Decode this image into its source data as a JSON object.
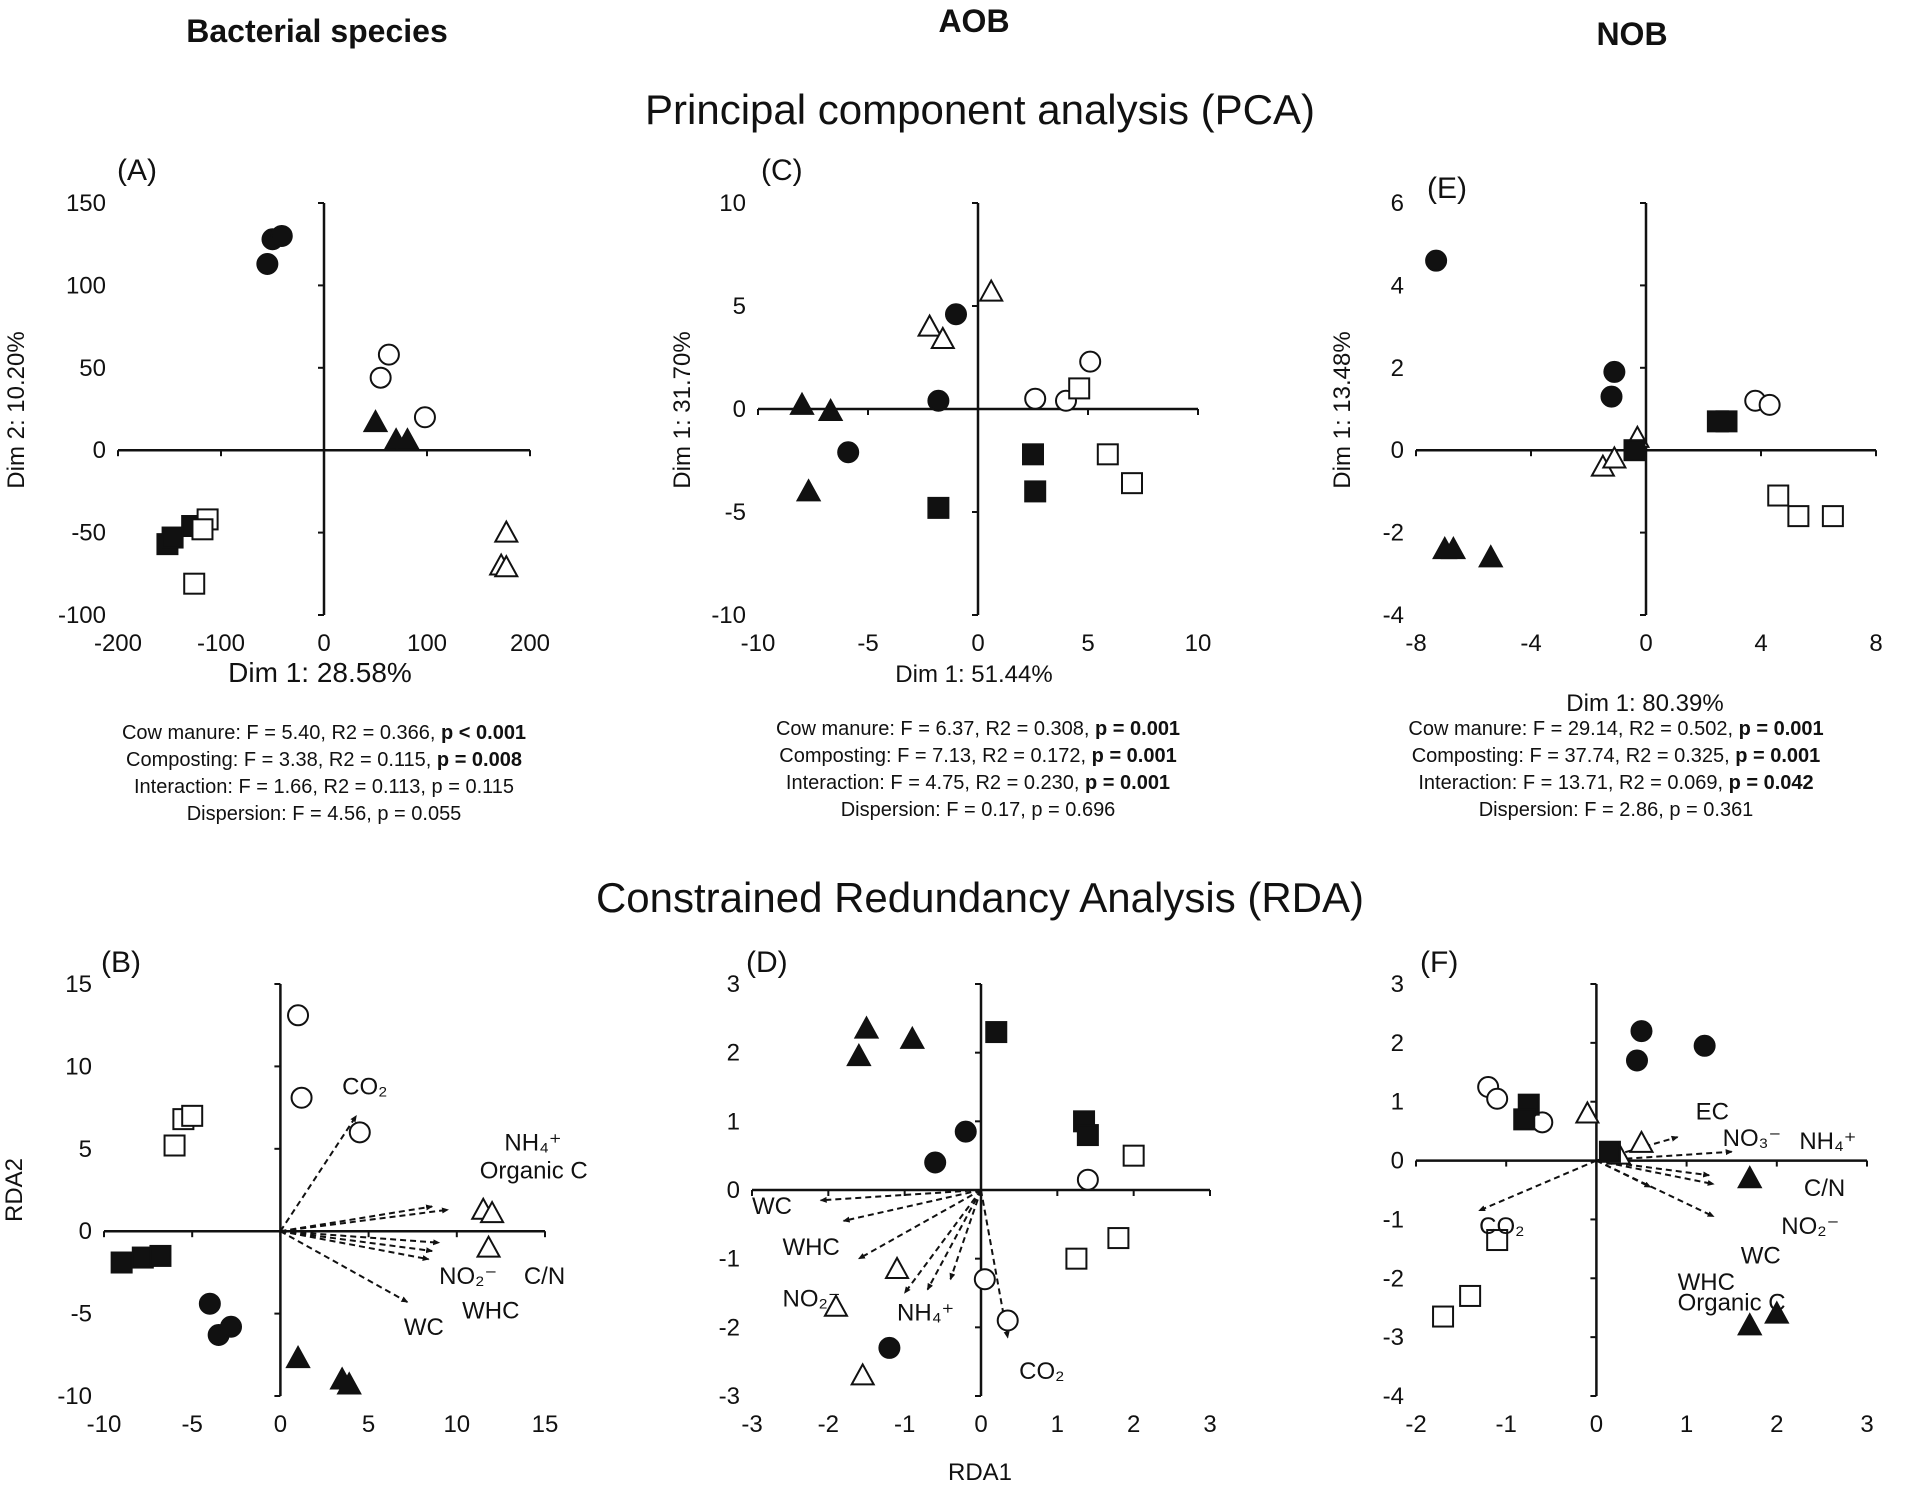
{
  "figure": {
    "column_headers": [
      "Bacterial species",
      "AOB",
      "NOB"
    ],
    "row_titles": [
      "Principal component analysis (PCA)",
      "Constrained Redundancy Analysis (RDA)"
    ],
    "shared_xlabel_rda": "RDA1"
  },
  "chart_data": [
    {
      "id": "A",
      "type": "scatter",
      "label": "(A)",
      "xlabel": "Dim 1: 28.58%",
      "ylabel": "Dim 2: 10.20%",
      "xlim": [
        -200,
        200
      ],
      "ylim": [
        -100,
        150
      ],
      "xticks": [
        -200,
        -100,
        0,
        100,
        200
      ],
      "yticks": [
        -100,
        -50,
        0,
        50,
        100,
        150
      ],
      "points": [
        {
          "x": -55,
          "y": 113,
          "m": "circle-filled"
        },
        {
          "x": -50,
          "y": 128,
          "m": "circle-filled"
        },
        {
          "x": -41,
          "y": 130,
          "m": "circle-filled"
        },
        {
          "x": 55,
          "y": 44,
          "m": "circle-open"
        },
        {
          "x": 63,
          "y": 58,
          "m": "circle-open"
        },
        {
          "x": 98,
          "y": 20,
          "m": "circle-open"
        },
        {
          "x": 50,
          "y": 17,
          "m": "triangle-filled"
        },
        {
          "x": 70,
          "y": 6,
          "m": "triangle-filled"
        },
        {
          "x": 81,
          "y": 6,
          "m": "triangle-filled"
        },
        {
          "x": 177,
          "y": -50,
          "m": "triangle-open"
        },
        {
          "x": 172,
          "y": -70,
          "m": "triangle-open"
        },
        {
          "x": 177,
          "y": -71,
          "m": "triangle-open"
        },
        {
          "x": -152,
          "y": -57,
          "m": "square-filled"
        },
        {
          "x": -147,
          "y": -53,
          "m": "square-filled"
        },
        {
          "x": -128,
          "y": -46,
          "m": "square-filled"
        },
        {
          "x": -113,
          "y": -42,
          "m": "square-open"
        },
        {
          "x": -118,
          "y": -48,
          "m": "square-open"
        },
        {
          "x": -126,
          "y": -81,
          "m": "square-open"
        }
      ],
      "stats": [
        {
          "pre": "Cow manure: F = 5.40, R2 = 0.366, ",
          "p": "p < 0.001",
          "bold": true
        },
        {
          "pre": "Composting: F = 3.38, R2 = 0.115, ",
          "p": "p = 0.008",
          "bold": true
        },
        {
          "pre": "Interaction: F = 1.66, R2 = 0.113, ",
          "p": "p = 0.115",
          "bold": false
        },
        {
          "pre": "Dispersion: F = 4.56, ",
          "p": "p = 0.055",
          "bold": false
        }
      ]
    },
    {
      "id": "C",
      "type": "scatter",
      "label": "(C)",
      "xlabel": "Dim 1: 51.44%",
      "ylabel": "Dim 1: 31.70%",
      "xlim": [
        -10,
        10
      ],
      "ylim": [
        -10,
        10
      ],
      "xticks": [
        -10,
        -5,
        0,
        5,
        10
      ],
      "yticks": [
        -10,
        -5,
        0,
        5,
        10
      ],
      "points": [
        {
          "x": -1.0,
          "y": 4.6,
          "m": "circle-filled"
        },
        {
          "x": -1.8,
          "y": 0.4,
          "m": "circle-filled"
        },
        {
          "x": -5.9,
          "y": -2.1,
          "m": "circle-filled"
        },
        {
          "x": 2.6,
          "y": 0.5,
          "m": "circle-open"
        },
        {
          "x": 4.0,
          "y": 0.4,
          "m": "circle-open"
        },
        {
          "x": 5.1,
          "y": 2.3,
          "m": "circle-open"
        },
        {
          "x": -8.0,
          "y": 0.2,
          "m": "triangle-filled"
        },
        {
          "x": -6.7,
          "y": -0.1,
          "m": "triangle-filled"
        },
        {
          "x": -7.7,
          "y": -4.0,
          "m": "triangle-filled"
        },
        {
          "x": 0.6,
          "y": 5.7,
          "m": "triangle-open"
        },
        {
          "x": -2.2,
          "y": 4.0,
          "m": "triangle-open"
        },
        {
          "x": -1.6,
          "y": 3.4,
          "m": "triangle-open"
        },
        {
          "x": 2.5,
          "y": -2.2,
          "m": "square-filled"
        },
        {
          "x": 2.6,
          "y": -4.0,
          "m": "square-filled"
        },
        {
          "x": -1.8,
          "y": -4.8,
          "m": "square-filled"
        },
        {
          "x": 4.6,
          "y": 1.0,
          "m": "square-open"
        },
        {
          "x": 5.9,
          "y": -2.2,
          "m": "square-open"
        },
        {
          "x": 7.0,
          "y": -3.6,
          "m": "square-open"
        }
      ],
      "stats": [
        {
          "pre": "Cow manure: F = 6.37, R2 = 0.308, ",
          "p": "p = 0.001",
          "bold": true
        },
        {
          "pre": "Composting: F = 7.13, R2 = 0.172, ",
          "p": "p = 0.001",
          "bold": true
        },
        {
          "pre": "Interaction: F = 4.75, R2 = 0.230, ",
          "p": "p = 0.001",
          "bold": true
        },
        {
          "pre": "Dispersion: F = 0.17, ",
          "p": "p = 0.696",
          "bold": false
        }
      ]
    },
    {
      "id": "E",
      "type": "scatter",
      "label": "(E)",
      "xlabel": "Dim 1: 80.39%",
      "ylabel": "Dim 1: 13.48%",
      "xlim": [
        -8,
        8
      ],
      "ylim": [
        -4,
        6
      ],
      "xticks": [
        -8,
        -4,
        0,
        4,
        8
      ],
      "yticks": [
        -4,
        -2,
        0,
        2,
        4,
        6
      ],
      "points": [
        {
          "x": -7.3,
          "y": 4.6,
          "m": "circle-filled"
        },
        {
          "x": -1.1,
          "y": 1.9,
          "m": "circle-filled"
        },
        {
          "x": -1.2,
          "y": 1.3,
          "m": "circle-filled"
        },
        {
          "x": 3.8,
          "y": 1.2,
          "m": "circle-open"
        },
        {
          "x": 4.3,
          "y": 1.1,
          "m": "circle-open"
        },
        {
          "x": -7.0,
          "y": -2.4,
          "m": "triangle-filled"
        },
        {
          "x": -6.7,
          "y": -2.4,
          "m": "triangle-filled"
        },
        {
          "x": -5.4,
          "y": -2.6,
          "m": "triangle-filled"
        },
        {
          "x": -1.5,
          "y": -0.4,
          "m": "triangle-open"
        },
        {
          "x": -1.1,
          "y": -0.2,
          "m": "triangle-open"
        },
        {
          "x": -0.3,
          "y": 0.3,
          "m": "triangle-open"
        },
        {
          "x": -0.4,
          "y": 0.0,
          "m": "square-filled"
        },
        {
          "x": 2.5,
          "y": 0.7,
          "m": "square-filled"
        },
        {
          "x": 2.8,
          "y": 0.7,
          "m": "square-filled"
        },
        {
          "x": 4.6,
          "y": -1.1,
          "m": "square-open"
        },
        {
          "x": 5.3,
          "y": -1.6,
          "m": "square-open"
        },
        {
          "x": 6.5,
          "y": -1.6,
          "m": "square-open"
        }
      ],
      "stats": [
        {
          "pre": "Cow manure: F = 29.14, R2 = 0.502, ",
          "p": "p = 0.001",
          "bold": true
        },
        {
          "pre": "Composting: F = 37.74, R2 = 0.325, ",
          "p": "p = 0.001",
          "bold": true
        },
        {
          "pre": "Interaction: F = 13.71, R2 = 0.069, ",
          "p": "p = 0.042",
          "bold": true
        },
        {
          "pre": "Dispersion: F = 2.86, ",
          "p": "p = 0.361",
          "bold": false
        }
      ]
    },
    {
      "id": "B",
      "type": "scatter",
      "label": "(B)",
      "xlabel": "",
      "ylabel": "RDA2",
      "xlim": [
        -10,
        15
      ],
      "ylim": [
        -10,
        15
      ],
      "xticks": [
        -10,
        -5,
        0,
        5,
        10,
        15
      ],
      "yticks": [
        -10,
        -5,
        0,
        5,
        10,
        15
      ],
      "points": [
        {
          "x": -4.0,
          "y": -4.4,
          "m": "circle-filled"
        },
        {
          "x": -3.5,
          "y": -6.3,
          "m": "circle-filled"
        },
        {
          "x": -2.8,
          "y": -5.8,
          "m": "circle-filled"
        },
        {
          "x": 1.0,
          "y": 13.1,
          "m": "circle-open"
        },
        {
          "x": 1.2,
          "y": 8.1,
          "m": "circle-open"
        },
        {
          "x": 4.5,
          "y": 6.0,
          "m": "circle-open"
        },
        {
          "x": 1.0,
          "y": -7.7,
          "m": "triangle-filled"
        },
        {
          "x": 3.5,
          "y": -9.0,
          "m": "triangle-filled"
        },
        {
          "x": 3.9,
          "y": -9.3,
          "m": "triangle-filled"
        },
        {
          "x": 11.5,
          "y": 1.3,
          "m": "triangle-open"
        },
        {
          "x": 12.0,
          "y": 1.1,
          "m": "triangle-open"
        },
        {
          "x": 11.8,
          "y": -1.0,
          "m": "triangle-open"
        },
        {
          "x": -9.0,
          "y": -1.9,
          "m": "square-filled"
        },
        {
          "x": -7.8,
          "y": -1.6,
          "m": "square-filled"
        },
        {
          "x": -6.8,
          "y": -1.5,
          "m": "square-filled"
        },
        {
          "x": -6.0,
          "y": 5.2,
          "m": "square-open"
        },
        {
          "x": -5.5,
          "y": 6.8,
          "m": "square-open"
        },
        {
          "x": -5.0,
          "y": 7.0,
          "m": "square-open"
        }
      ],
      "vectors": [
        {
          "label": "CO₂",
          "x": 4.3,
          "y": 7.0
        },
        {
          "label": "",
          "x": 8.6,
          "y": 1.5
        },
        {
          "label": "",
          "x": 9.5,
          "y": 1.3
        },
        {
          "label": "",
          "x": 9.0,
          "y": -0.7
        },
        {
          "label": "",
          "x": 8.6,
          "y": -1.2
        },
        {
          "label": "",
          "x": 8.4,
          "y": -1.7
        },
        {
          "label": "",
          "x": 7.2,
          "y": -4.3
        }
      ],
      "annotations": [
        {
          "text": "CO₂",
          "x": 3.5,
          "y": 8.3
        },
        {
          "text": "NH₄⁺",
          "x": 12.7,
          "y": 4.9
        },
        {
          "text": "Organic C",
          "x": 11.3,
          "y": 3.2
        },
        {
          "text": "NO₂⁻",
          "x": 9.0,
          "y": -3.2
        },
        {
          "text": "C/N",
          "x": 13.8,
          "y": -3.2
        },
        {
          "text": "WHC",
          "x": 10.3,
          "y": -5.3
        },
        {
          "text": "WC",
          "x": 7.0,
          "y": -6.3
        }
      ]
    },
    {
      "id": "D",
      "type": "scatter",
      "label": "(D)",
      "xlabel": "RDA1",
      "ylabel": "",
      "xlim": [
        -3,
        3
      ],
      "ylim": [
        -3,
        3
      ],
      "xticks": [
        -3,
        -2,
        -1,
        0,
        1,
        2,
        3
      ],
      "yticks": [
        -3,
        -2,
        -1,
        0,
        1,
        2,
        3
      ],
      "points": [
        {
          "x": -0.2,
          "y": 0.85,
          "m": "circle-filled"
        },
        {
          "x": -0.6,
          "y": 0.4,
          "m": "circle-filled"
        },
        {
          "x": -1.2,
          "y": -2.3,
          "m": "circle-filled"
        },
        {
          "x": 1.4,
          "y": 0.15,
          "m": "circle-open"
        },
        {
          "x": 0.05,
          "y": -1.3,
          "m": "circle-open"
        },
        {
          "x": 0.35,
          "y": -1.9,
          "m": "circle-open"
        },
        {
          "x": -1.5,
          "y": 2.35,
          "m": "triangle-filled"
        },
        {
          "x": -1.6,
          "y": 1.95,
          "m": "triangle-filled"
        },
        {
          "x": -0.9,
          "y": 2.2,
          "m": "triangle-filled"
        },
        {
          "x": -1.1,
          "y": -1.15,
          "m": "triangle-open"
        },
        {
          "x": -1.9,
          "y": -1.7,
          "m": "triangle-open"
        },
        {
          "x": -1.55,
          "y": -2.7,
          "m": "triangle-open"
        },
        {
          "x": 0.2,
          "y": 2.3,
          "m": "square-filled"
        },
        {
          "x": 1.35,
          "y": 1.0,
          "m": "square-filled"
        },
        {
          "x": 1.4,
          "y": 0.8,
          "m": "square-filled"
        },
        {
          "x": 2.0,
          "y": 0.5,
          "m": "square-open"
        },
        {
          "x": 1.8,
          "y": -0.7,
          "m": "square-open"
        },
        {
          "x": 1.25,
          "y": -1.0,
          "m": "square-open"
        }
      ],
      "vectors": [
        {
          "label": "WC",
          "x": -2.1,
          "y": -0.15
        },
        {
          "label": "WHC",
          "x": -1.8,
          "y": -0.45
        },
        {
          "label": "NO₂⁻",
          "x": -1.6,
          "y": -1.0
        },
        {
          "label": "NH₄⁺",
          "x": -1.0,
          "y": -1.5
        },
        {
          "label": "",
          "x": -0.7,
          "y": -1.45
        },
        {
          "label": "",
          "x": -0.4,
          "y": -1.3
        },
        {
          "label": "CO₂",
          "x": 0.35,
          "y": -2.15
        }
      ],
      "annotations": [
        {
          "text": "WC",
          "x": -3.0,
          "y": -0.35
        },
        {
          "text": "WHC",
          "x": -2.6,
          "y": -0.95
        },
        {
          "text": "NO₂⁻",
          "x": -2.6,
          "y": -1.7
        },
        {
          "text": "NH₄⁺",
          "x": -1.1,
          "y": -1.9
        },
        {
          "text": "CO₂",
          "x": 0.5,
          "y": -2.75
        }
      ]
    },
    {
      "id": "F",
      "type": "scatter",
      "label": "(F)",
      "xlabel": "",
      "ylabel": "",
      "xlim": [
        -2,
        3
      ],
      "ylim": [
        -4,
        3
      ],
      "xticks": [
        -2,
        -1,
        0,
        1,
        2,
        3
      ],
      "yticks": [
        -4,
        -3,
        -2,
        -1,
        0,
        1,
        2,
        3
      ],
      "points": [
        {
          "x": 0.5,
          "y": 2.2,
          "m": "circle-filled"
        },
        {
          "x": 0.45,
          "y": 1.7,
          "m": "circle-filled"
        },
        {
          "x": 1.2,
          "y": 1.95,
          "m": "circle-filled"
        },
        {
          "x": -1.2,
          "y": 1.25,
          "m": "circle-open"
        },
        {
          "x": -1.1,
          "y": 1.05,
          "m": "circle-open"
        },
        {
          "x": -0.6,
          "y": 0.65,
          "m": "circle-open"
        },
        {
          "x": 1.7,
          "y": -0.3,
          "m": "triangle-filled"
        },
        {
          "x": 1.7,
          "y": -2.8,
          "m": "triangle-filled"
        },
        {
          "x": 2.0,
          "y": -2.6,
          "m": "triangle-filled"
        },
        {
          "x": -0.1,
          "y": 0.8,
          "m": "triangle-open"
        },
        {
          "x": 0.5,
          "y": 0.3,
          "m": "triangle-open"
        },
        {
          "x": 0.25,
          "y": 0.1,
          "m": "triangle-open"
        },
        {
          "x": -0.75,
          "y": 0.95,
          "m": "square-filled"
        },
        {
          "x": -0.8,
          "y": 0.7,
          "m": "square-filled"
        },
        {
          "x": 0.15,
          "y": 0.15,
          "m": "square-filled"
        },
        {
          "x": -1.1,
          "y": -1.35,
          "m": "square-open"
        },
        {
          "x": -1.4,
          "y": -2.3,
          "m": "square-open"
        },
        {
          "x": -1.7,
          "y": -2.65,
          "m": "square-open"
        }
      ],
      "vectors": [
        {
          "label": "EC",
          "x": 0.9,
          "y": 0.4
        },
        {
          "label": "NO₃⁻",
          "x": 1.5,
          "y": 0.15
        },
        {
          "label": "CO₂",
          "x": -1.3,
          "y": -0.85
        },
        {
          "label": "",
          "x": 1.25,
          "y": -0.25
        },
        {
          "label": "",
          "x": 1.3,
          "y": -0.4
        },
        {
          "label": "",
          "x": 0.6,
          "y": -0.45
        },
        {
          "label": "",
          "x": 1.3,
          "y": -0.95
        }
      ],
      "annotations": [
        {
          "text": "EC",
          "x": 1.1,
          "y": 0.7
        },
        {
          "text": "NO₃⁻",
          "x": 1.4,
          "y": 0.25
        },
        {
          "text": "NH₄⁺",
          "x": 2.25,
          "y": 0.2
        },
        {
          "text": "C/N",
          "x": 2.3,
          "y": -0.6
        },
        {
          "text": "NO₂⁻",
          "x": 2.05,
          "y": -1.25
        },
        {
          "text": "WC",
          "x": 1.6,
          "y": -1.75
        },
        {
          "text": "WHC",
          "x": 0.9,
          "y": -2.2
        },
        {
          "text": "Organic C",
          "x": 0.9,
          "y": -2.55
        },
        {
          "text": "CO₂",
          "x": -1.3,
          "y": -1.25
        }
      ]
    }
  ]
}
